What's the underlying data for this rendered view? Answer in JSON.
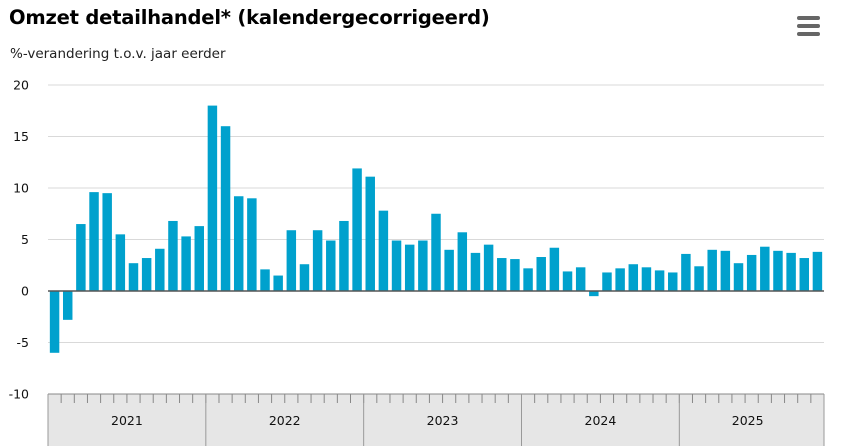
{
  "header": {
    "title": "Omzet detailhandel* (kalendergecorrigeerd)",
    "subtitle": "%-verandering t.o.v. jaar eerder",
    "menu_icon": "hamburger-menu-icon"
  },
  "colors": {
    "bar": "#00a1cd",
    "grid": "#d9d9d9",
    "zero_line": "#555555",
    "axis_band": "#e6e6e6"
  },
  "chart_data": {
    "type": "bar",
    "title": "Omzet detailhandel* (kalendergecorrigeerd)",
    "subtitle": "%-verandering t.o.v. jaar eerder",
    "xlabel": "",
    "ylabel": "",
    "ylim": [
      -10,
      20
    ],
    "yticks": [
      -10,
      -5,
      0,
      5,
      10,
      15,
      20
    ],
    "grid": true,
    "legend": "none",
    "years": [
      "2021",
      "2022",
      "2023",
      "2024",
      "2025"
    ],
    "months_per_year": [
      12,
      12,
      12,
      12,
      11
    ],
    "values": [
      -6.0,
      -2.8,
      6.5,
      9.6,
      9.5,
      5.5,
      2.7,
      3.2,
      4.1,
      6.8,
      5.3,
      6.3,
      18.0,
      16.0,
      9.2,
      9.0,
      2.1,
      1.5,
      5.9,
      2.6,
      5.9,
      4.9,
      6.8,
      11.9,
      11.1,
      7.8,
      4.9,
      4.5,
      4.9,
      7.5,
      4.0,
      5.7,
      3.7,
      4.5,
      3.2,
      3.1,
      2.2,
      3.3,
      4.2,
      1.9,
      2.3,
      -0.5,
      1.8,
      2.2,
      2.6,
      2.3,
      2.0,
      1.8,
      3.6,
      2.4,
      4.0,
      3.9,
      2.7,
      3.5,
      4.3,
      3.9,
      3.7,
      3.2,
      3.8
    ]
  }
}
